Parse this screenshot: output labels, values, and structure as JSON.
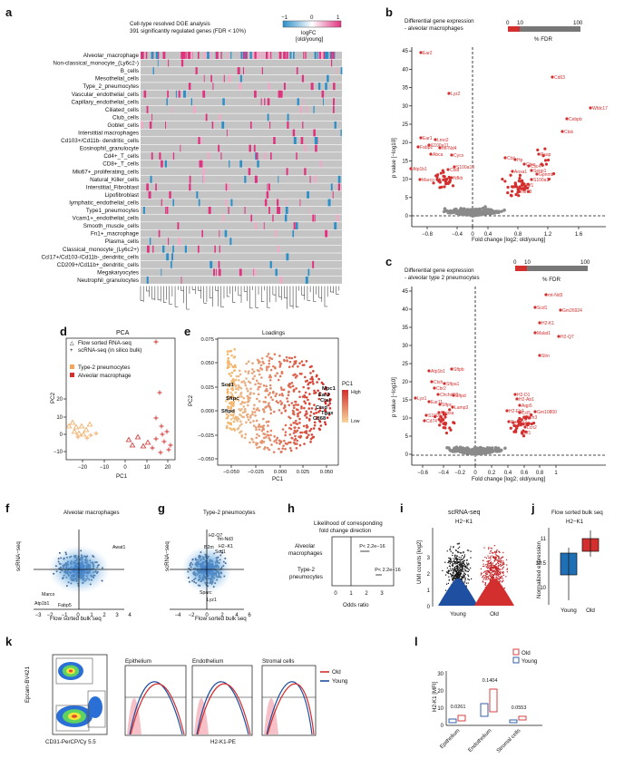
{
  "panels": {
    "a": {
      "label": "a",
      "title_line1": "Cell-type resolved DGE analysis",
      "title_line2": "391 significantly regulated genes (FDR < 10%)",
      "legend_ticks": [
        "−1",
        "0",
        "1"
      ],
      "legend_title1": "logFC",
      "legend_title2": "[old/young]",
      "rows": [
        "Alveolar_macrophage",
        "Non-classical_monocyte_(Ly6c2-)",
        "B_cells",
        "Mesothelial_cells",
        "Type_2_pneumocytes",
        "Vascular_endothelial_cells",
        "Capillary_endothelial_cells",
        "Ciliated_cells",
        "Club_cells",
        "Goblet_cells",
        "Interstitial macrophages",
        "Cd103+/Cd11b- dendritic_cells",
        "Eosinophil_granulocyte",
        "Cd4+_T_cells",
        "CD8+_T_cells",
        "Mki67+_proliferating_cells",
        "Natural_Killer_cells",
        "Interstitial_Fibroblast",
        "Lipofibroblast",
        "lymphatic_endothelial_cells",
        "Type1_pneumocytes",
        "Vcam1+_endothelial_cells",
        "Smooth_muscle_cells",
        "Fn1+_macrophage",
        "Plasma_cells",
        "Classical_monocyte_(Ly6c2+)",
        "Ccl17+/Cd103-/Cd11b-_dendritic_cells",
        "CD209+/Cd11b+_dendritic_cells",
        "Megakaryocytes",
        "Neutrophil_granulocytes"
      ]
    },
    "b": {
      "label": "b",
      "title_line1": "Differential gene expression",
      "title_line2": "- alveolar macrophages",
      "fdr_ticks": [
        "0",
        "10",
        "100"
      ],
      "fdr_label": "% FDR",
      "xlabel": "Fold change [log2; old/young]",
      "ylabel": "p value [−log10]",
      "xticks": [
        "−0.8",
        "−0.4",
        "0",
        "0.4",
        "0.8",
        "1.2",
        "1.6"
      ],
      "yticks": [
        "0",
        "5",
        "10",
        "15",
        "20",
        "25",
        "30",
        "35",
        "40",
        "45"
      ],
      "genes": [
        "Ear2",
        "Lyz2",
        "Cd63",
        "Wfdc17",
        "Cebpb",
        "Ctsk",
        "Psap",
        "Ear1",
        "Lmo2",
        "Fabp1",
        "S100a11",
        "mt-Nd4",
        "Abca",
        "Cycs",
        "Atp1b1",
        "Marco",
        "Fcgr3",
        "Ctsd",
        "S100a10",
        "Ctsl",
        "Hp",
        "Ctsz",
        "Clic4",
        "Sepp1",
        "Gpnmb",
        "Anxa1",
        "S100a1",
        "Igf1",
        "Ifitm3",
        "Nfkb"
      ]
    },
    "c": {
      "label": "c",
      "title_line1": "Differential gene expression",
      "title_line2": "- alveolar type 2 pneumocytes",
      "fdr_ticks": [
        "0",
        "10",
        "100"
      ],
      "fdr_label": "% FDR",
      "xlabel": "Fold change [log2; old/young]",
      "ylabel": "p value [−log10]",
      "xticks": [
        "−0.6",
        "−0.4",
        "−0.2",
        "0",
        "0.2",
        "0.4",
        "0.6",
        "0.8",
        "1"
      ],
      "yticks": [
        "0",
        "5",
        "10",
        "15",
        "20",
        "25",
        "30",
        "35",
        "40",
        "45"
      ],
      "genes": [
        "mt-Nd3",
        "Gm26924",
        "Scd1",
        "H2-K1",
        "Malat1",
        "H2-Q7",
        "Slrn",
        "Atp1b1",
        "Sftpb",
        "Ctsh",
        "Sftpa1",
        "Cbr2",
        "Chchd10",
        "Sftpd",
        "Lyz1",
        "Ear11",
        "Sftpc",
        "Lamp3",
        "Napsa",
        "S100g",
        "Cd74",
        "H2-D1",
        "H2-Ab1",
        "Aqp5",
        "H2-Eb1",
        "Ccl5",
        "Gm10800",
        "Ifitm3",
        "Rarres2",
        "Lcn2",
        "Irf1"
      ]
    },
    "d": {
      "label": "d",
      "title": "PCA",
      "legend_triangle": "Flow sorted RNA-seq",
      "legend_plus": "scRNA-seq (in silico bulk)",
      "legend_type2": "Type-2 pneumocytes",
      "legend_am": "Alveolar macrophage",
      "xlabel": "PC1",
      "ylabel": "PC2",
      "xticks": [
        "−20",
        "−10",
        "0",
        "10",
        "20"
      ],
      "yticks": [
        "−10",
        "0",
        "10",
        "20"
      ]
    },
    "e": {
      "label": "e",
      "title": "Loadings",
      "xlabel": "PC1",
      "ylabel": "PC2",
      "xticks": [
        "−0.050",
        "−0.025",
        "0.000",
        "0.025",
        "0.050"
      ],
      "yticks": [
        "−0.050",
        "−0.025",
        "0.000",
        "0.025",
        "0.050",
        "0.075"
      ],
      "legend_title": "PC1",
      "legend_high": "High",
      "legend_low": "Low",
      "genes": [
        "Scd1",
        "Sftpc",
        "Sftpd",
        "Mpc1",
        "Ear2",
        "Ctsl",
        "Ctsd",
        "Tgax",
        "Cd68"
      ]
    },
    "f": {
      "label": "f",
      "title": "Alveolar macrophages",
      "xlabel": "Flow sorted bulk seq",
      "ylabel": "scRNA−seq",
      "xticks": [
        "−3",
        "−2",
        "−1",
        "0",
        "1",
        "2",
        "3",
        "4"
      ],
      "genes": [
        "Awat1",
        "Marco",
        "Atp1b1",
        "Fabp5"
      ]
    },
    "g": {
      "label": "g",
      "title": "Type-2 pneumocytes",
      "xlabel": "Flow sorted bulk seq",
      "ylabel": "scRNA−seq",
      "xticks": [
        "−4",
        "−2",
        "0",
        "2",
        "4",
        "6"
      ],
      "genes": [
        "H2-Q7",
        "mt-Nd3",
        "H2−K1",
        "Scd1",
        "B2m",
        "Sparc",
        "Lyz1"
      ]
    },
    "h": {
      "label": "h",
      "title_line1": "Likelihood of corresponding",
      "title_line2": "fold  change direction",
      "row1a": "Alveolar",
      "row1b": "macrophages",
      "row2a": "Type-2",
      "row2b": "pneumocytes",
      "p1": "P< 2.2e−16",
      "p2": "P< 2.2e−16",
      "xlabel": "Odds ratio",
      "xticks": [
        "0",
        "1",
        "2",
        "3"
      ]
    },
    "i": {
      "label": "i",
      "title1": "scRNA-seq",
      "title2": "H2−K1",
      "ylabel": "UMI counts [log2]",
      "yticks": [
        "0",
        "1",
        "2",
        "3"
      ],
      "xticks": [
        "Young",
        "Old"
      ]
    },
    "j": {
      "label": "j",
      "title1": "Flow sorted bulk seq",
      "title2": "H2−K1",
      "ylabel": "Normalized expression",
      "yticks": [
        "10",
        "10.5",
        "11"
      ],
      "xticks": [
        "Young",
        "Old"
      ]
    },
    "k": {
      "label": "k",
      "ylabel": "Epcam-BV421",
      "xlabel_left": "CD31-PerCP/Cy 5.5",
      "titles": [
        "Epithelium",
        "Endothelium",
        "Stromal cells"
      ],
      "legend_old": "Old",
      "legend_young": "Young",
      "xlabel_hist": "H2-K1-PE"
    },
    "l": {
      "label": "l",
      "legend_old": "Old",
      "legend_young": "Young",
      "ylabel": "H2-K1 [MFI]",
      "yticks": [
        "0",
        "10",
        "20",
        "30"
      ],
      "pvalues": [
        "0.0261",
        "0.1404",
        "0.0553"
      ],
      "xticks": [
        "Epithelium",
        "Endothelium",
        "Stromal cells"
      ]
    }
  },
  "colors": {
    "red": "#d32f2f",
    "blue": "#1f6fb5",
    "orange": "#f2a65a",
    "grey": "#8a8a8a",
    "magenta": "#e0337f"
  }
}
